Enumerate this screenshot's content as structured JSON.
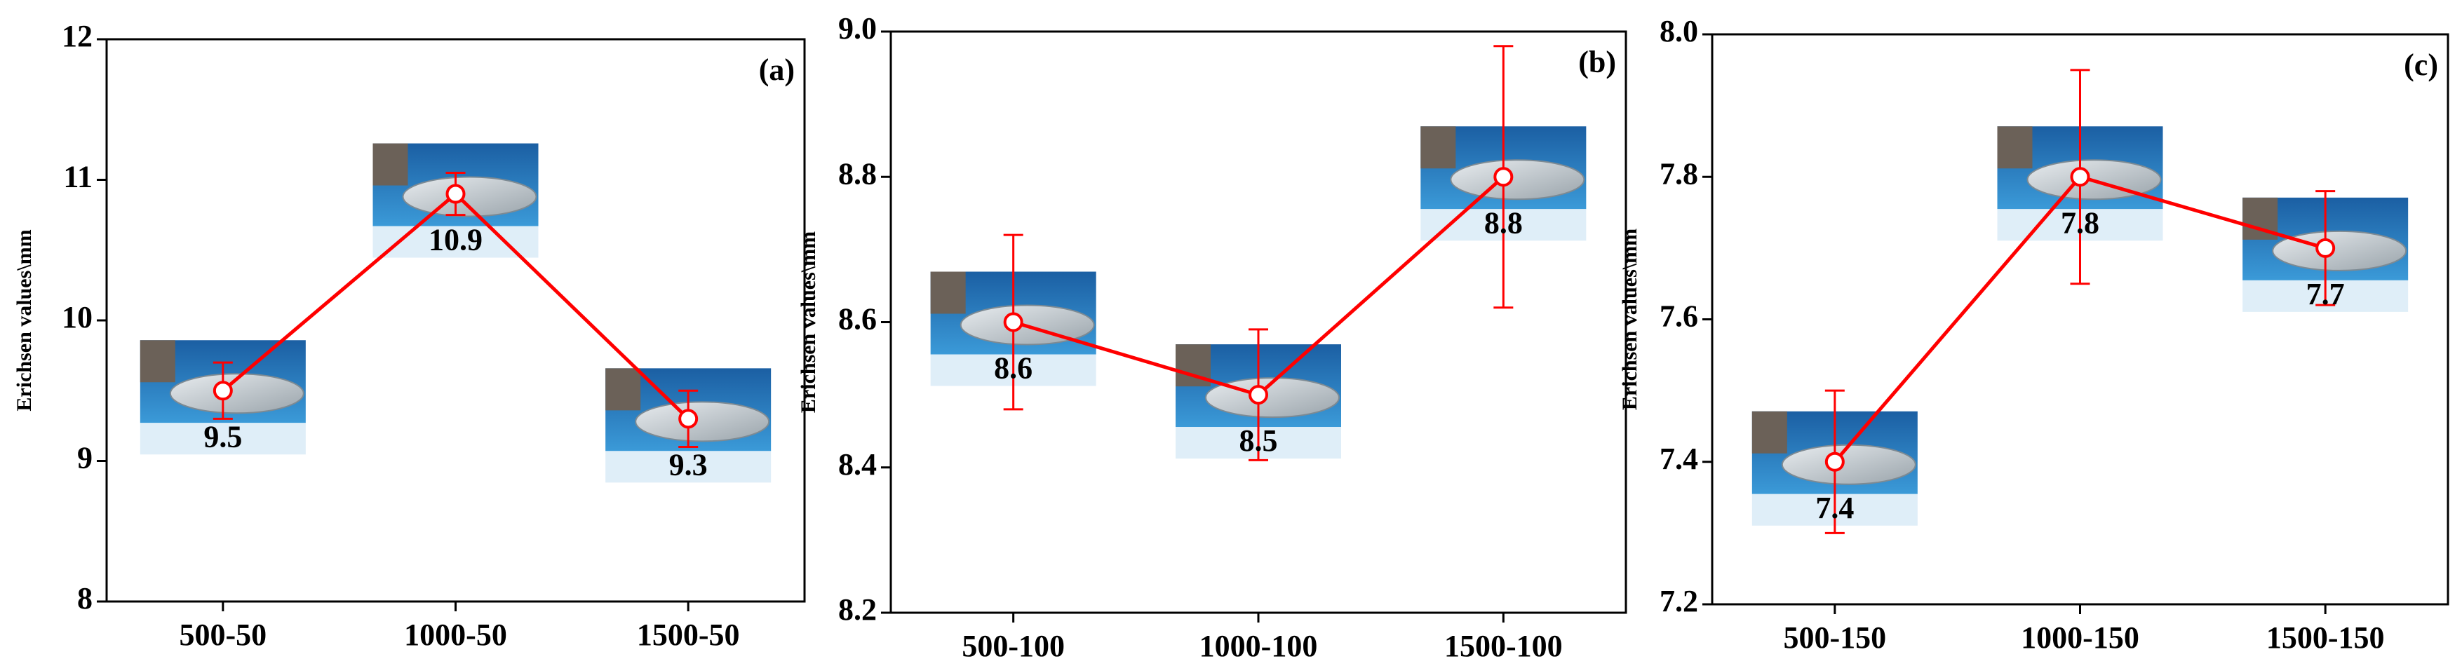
{
  "chart_data": [
    {
      "type": "line",
      "y_label": "Erichsen values\\mm",
      "annotation": "(a)",
      "categories": [
        "500-50",
        "1000-50",
        "1500-50"
      ],
      "values": [
        9.5,
        10.9,
        9.3
      ],
      "errors": [
        0.2,
        0.15,
        0.2
      ],
      "color": "#ff0000",
      "ylim": [
        8,
        12
      ],
      "yticks": [
        8,
        9,
        10,
        11,
        12
      ]
    },
    {
      "type": "line",
      "y_label": "Erichsen values\\mm",
      "annotation": "(b)",
      "categories": [
        "500-100",
        "1000-100",
        "1500-100"
      ],
      "values": [
        8.6,
        8.5,
        8.8
      ],
      "errors": [
        0.12,
        0.09,
        0.18
      ],
      "color": "#ff0000",
      "ylim": [
        8.2,
        9.0
      ],
      "yticks": [
        8.2,
        8.4,
        8.6,
        8.8,
        {
          "value": 9,
          "label": "9.0"
        }
      ]
    },
    {
      "type": "line",
      "y_label": "Erichsen values\\mm",
      "annotation": "(c)",
      "categories": [
        "500-150",
        "1000-150",
        "1500-150"
      ],
      "values": [
        7.4,
        7.8,
        7.7
      ],
      "errors": [
        0.1,
        0.15,
        0.08
      ],
      "color": "#ff0000",
      "ylim": [
        7.2,
        8.0
      ],
      "yticks": [
        7.2,
        7.4,
        7.6,
        7.8,
        {
          "value": 8,
          "label": "8.0"
        }
      ]
    }
  ]
}
